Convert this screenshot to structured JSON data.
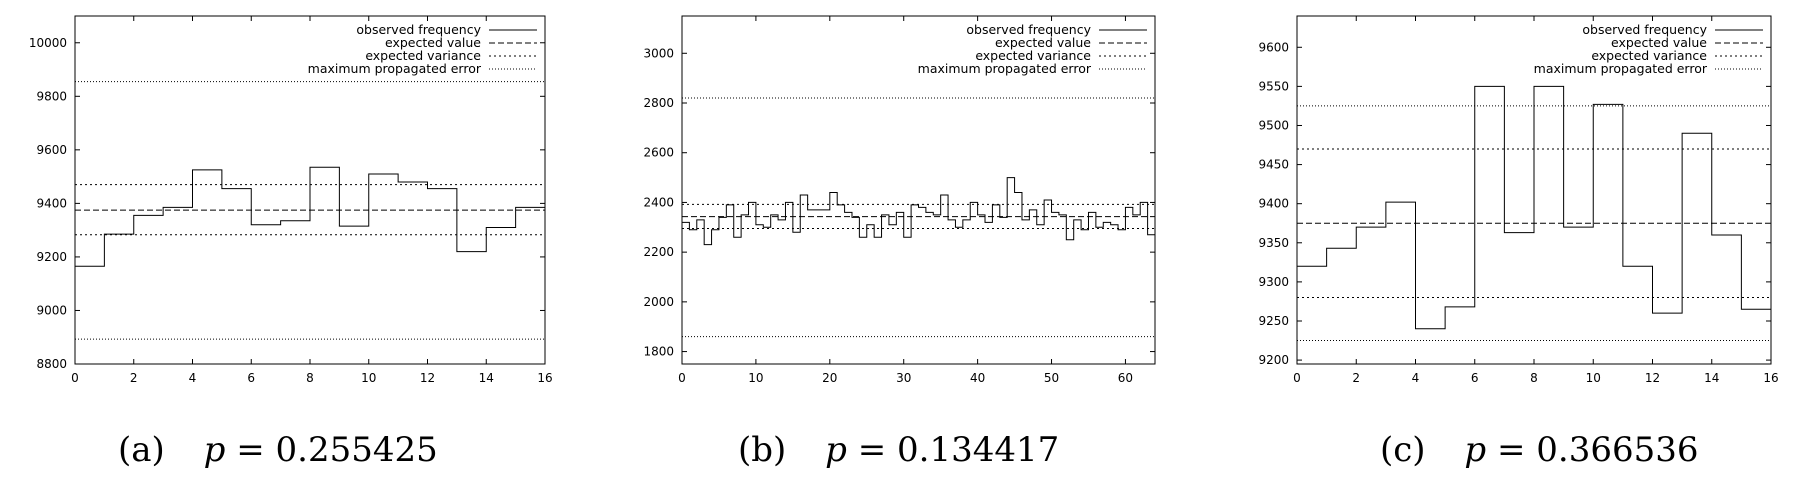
{
  "chart_data": [
    {
      "type": "line",
      "caption": {
        "letter": "(a)",
        "p_label": "p",
        "equals": "=",
        "p_value": "0.255425"
      },
      "xlim": [
        0,
        16
      ],
      "ylim": [
        8800,
        10100
      ],
      "xticks": [
        0,
        2,
        4,
        6,
        8,
        10,
        12,
        14,
        16
      ],
      "yticks": [
        8800,
        9000,
        9200,
        9400,
        9600,
        9800,
        10000
      ],
      "legend_position": "top-right",
      "series": [
        {
          "name": "observed frequency",
          "style": "solid",
          "kind": "step",
          "x": [
            0,
            1,
            2,
            3,
            4,
            5,
            6,
            7,
            8,
            9,
            10,
            11,
            12,
            13,
            14,
            15
          ],
          "values": [
            9165,
            9285,
            9355,
            9385,
            9525,
            9455,
            9320,
            9335,
            9535,
            9315,
            9510,
            9480,
            9455,
            9220,
            9310,
            9385
          ]
        },
        {
          "name": "expected value",
          "style": "dashed",
          "kind": "hline",
          "values": [
            9375
          ]
        },
        {
          "name": "expected variance",
          "style": "dotted",
          "kind": "hline",
          "values": [
            9283,
            9470
          ]
        },
        {
          "name": "maximum propagated error",
          "style": "fine-dotted",
          "kind": "hline",
          "values": [
            8893,
            9855
          ]
        }
      ]
    },
    {
      "type": "line",
      "caption": {
        "letter": "(b)",
        "p_label": "p",
        "equals": "=",
        "p_value": "0.134417"
      },
      "xlim": [
        0,
        64
      ],
      "ylim": [
        1750,
        3150
      ],
      "xticks": [
        0,
        10,
        20,
        30,
        40,
        50,
        60
      ],
      "yticks": [
        1800,
        2000,
        2200,
        2400,
        2600,
        2800,
        3000
      ],
      "legend_position": "top-right",
      "series": [
        {
          "name": "observed frequency",
          "style": "solid",
          "kind": "step",
          "x": [
            0,
            1,
            2,
            3,
            4,
            5,
            6,
            7,
            8,
            9,
            10,
            11,
            12,
            13,
            14,
            15,
            16,
            17,
            18,
            19,
            20,
            21,
            22,
            23,
            24,
            25,
            26,
            27,
            28,
            29,
            30,
            31,
            32,
            33,
            34,
            35,
            36,
            37,
            38,
            39,
            40,
            41,
            42,
            43,
            44,
            45,
            46,
            47,
            48,
            49,
            50,
            51,
            52,
            53,
            54,
            55,
            56,
            57,
            58,
            59,
            60,
            61,
            62,
            63
          ],
          "values": [
            2320,
            2290,
            2330,
            2230,
            2290,
            2340,
            2390,
            2260,
            2350,
            2400,
            2310,
            2300,
            2350,
            2330,
            2400,
            2280,
            2430,
            2370,
            2370,
            2370,
            2440,
            2390,
            2360,
            2340,
            2260,
            2310,
            2260,
            2350,
            2310,
            2360,
            2260,
            2390,
            2380,
            2360,
            2350,
            2430,
            2330,
            2300,
            2330,
            2400,
            2350,
            2320,
            2390,
            2340,
            2500,
            2440,
            2330,
            2370,
            2310,
            2410,
            2360,
            2350,
            2250,
            2330,
            2290,
            2360,
            2300,
            2320,
            2310,
            2290,
            2380,
            2350,
            2400,
            2270
          ]
        },
        {
          "name": "expected value",
          "style": "dashed",
          "kind": "hline",
          "values": [
            2343
          ]
        },
        {
          "name": "expected variance",
          "style": "dotted",
          "kind": "hline",
          "values": [
            2295,
            2392
          ]
        },
        {
          "name": "maximum propagated error",
          "style": "fine-dotted",
          "kind": "hline",
          "values": [
            1860,
            2820
          ]
        }
      ]
    },
    {
      "type": "line",
      "caption": {
        "letter": "(c)",
        "p_label": "p",
        "equals": "=",
        "p_value": "0.366536"
      },
      "xlim": [
        0,
        16
      ],
      "ylim": [
        9195,
        9640
      ],
      "xticks": [
        0,
        2,
        4,
        6,
        8,
        10,
        12,
        14,
        16
      ],
      "yticks": [
        9200,
        9250,
        9300,
        9350,
        9400,
        9450,
        9500,
        9550,
        9600
      ],
      "legend_position": "top-right",
      "series": [
        {
          "name": "observed frequency",
          "style": "solid",
          "kind": "step",
          "x": [
            0,
            1,
            2,
            3,
            4,
            5,
            6,
            7,
            8,
            9,
            10,
            11,
            12,
            13,
            14,
            15
          ],
          "values": [
            9320,
            9343,
            9370,
            9402,
            9240,
            9268,
            9550,
            9363,
            9550,
            9370,
            9527,
            9320,
            9260,
            9490,
            9360,
            9265
          ]
        },
        {
          "name": "expected value",
          "style": "dashed",
          "kind": "hline",
          "values": [
            9375
          ]
        },
        {
          "name": "expected variance",
          "style": "dotted",
          "kind": "hline",
          "values": [
            9280,
            9470
          ]
        },
        {
          "name": "maximum propagated error",
          "style": "fine-dotted",
          "kind": "hline",
          "values": [
            9225,
            9525
          ]
        }
      ]
    }
  ]
}
